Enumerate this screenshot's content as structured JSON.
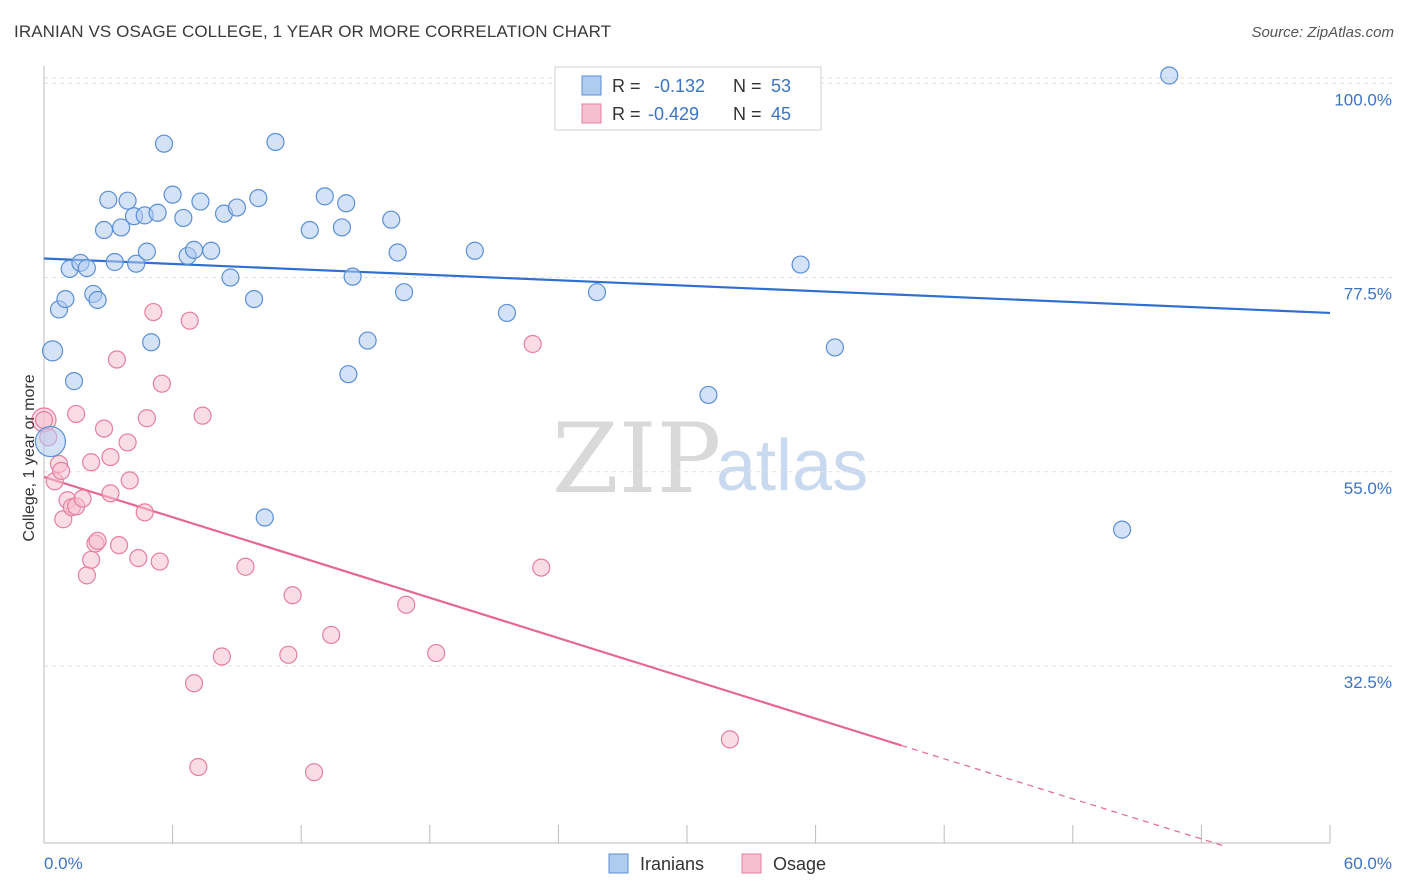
{
  "title": "IRANIAN VS OSAGE COLLEGE, 1 YEAR OR MORE CORRELATION CHART",
  "source": "Source: ZipAtlas.com",
  "colors": {
    "iranians_fill": "#aecbf0",
    "iranians_stroke": "#5b8fd6",
    "iranians_line": "#2f6fd0",
    "osage_fill": "#f6bfd0",
    "osage_stroke": "#e67fa0",
    "osage_line": "#e4688f"
  },
  "watermark": {
    "zip": "ZIP",
    "atlas": "atlas"
  },
  "legend_top": {
    "iranians": {
      "r_label": "R =",
      "r_value": "-0.132",
      "n_label": "N =",
      "n_value": "53"
    },
    "osage": {
      "r_label": "R =",
      "r_value": "-0.429",
      "n_label": "N =",
      "n_value": "45"
    }
  },
  "legend_bottom": {
    "iranians": "Iranians",
    "osage": "Osage"
  },
  "chart_data": {
    "type": "scatter",
    "title": "IRANIAN VS OSAGE COLLEGE, 1 YEAR OR MORE CORRELATION CHART",
    "xlabel": "",
    "ylabel": "College, 1 year or more",
    "xlim": [
      0,
      60
    ],
    "ylim": [
      12,
      102
    ],
    "x_tick_labels": [
      "0.0%",
      "60.0%"
    ],
    "y_ticks": [
      100,
      77.5,
      55,
      32.5
    ],
    "y_tick_labels": [
      "100.0%",
      "77.5%",
      "55.0%",
      "32.5%"
    ],
    "grid": true,
    "series": [
      {
        "name": "Iranians",
        "r": -0.132,
        "n": 53,
        "trend": {
          "x": [
            0,
            60
          ],
          "y": [
            79.7,
            73.4
          ]
        },
        "points": [
          [
            0.3,
            58.5
          ],
          [
            0.4,
            69.0
          ],
          [
            0.7,
            73.8
          ],
          [
            1.0,
            75.0
          ],
          [
            1.2,
            78.5
          ],
          [
            1.4,
            65.5
          ],
          [
            1.7,
            79.2
          ],
          [
            2.0,
            78.6
          ],
          [
            2.3,
            75.6
          ],
          [
            2.5,
            74.9
          ],
          [
            2.8,
            83.0
          ],
          [
            3.0,
            86.5
          ],
          [
            3.3,
            79.3
          ],
          [
            3.6,
            83.3
          ],
          [
            3.9,
            86.4
          ],
          [
            4.2,
            84.6
          ],
          [
            4.3,
            79.1
          ],
          [
            4.7,
            84.7
          ],
          [
            4.8,
            80.5
          ],
          [
            5.0,
            70.0
          ],
          [
            5.3,
            85.0
          ],
          [
            5.6,
            93.0
          ],
          [
            6.0,
            87.1
          ],
          [
            6.5,
            84.4
          ],
          [
            6.7,
            80.0
          ],
          [
            7.0,
            80.7
          ],
          [
            7.3,
            86.3
          ],
          [
            7.8,
            80.6
          ],
          [
            8.4,
            84.9
          ],
          [
            8.7,
            77.5
          ],
          [
            9.0,
            85.6
          ],
          [
            9.8,
            75.0
          ],
          [
            10.0,
            86.7
          ],
          [
            10.3,
            49.7
          ],
          [
            10.8,
            93.2
          ],
          [
            12.4,
            83.0
          ],
          [
            13.1,
            86.9
          ],
          [
            13.9,
            83.3
          ],
          [
            14.1,
            86.1
          ],
          [
            14.2,
            66.3
          ],
          [
            14.4,
            77.6
          ],
          [
            15.1,
            70.2
          ],
          [
            16.2,
            84.2
          ],
          [
            16.5,
            80.4
          ],
          [
            16.8,
            75.8
          ],
          [
            20.1,
            80.6
          ],
          [
            21.6,
            73.4
          ],
          [
            25.8,
            75.8
          ],
          [
            31.0,
            63.9
          ],
          [
            35.3,
            79.0
          ],
          [
            36.9,
            69.4
          ],
          [
            50.3,
            48.3
          ],
          [
            52.5,
            100.9
          ]
        ]
      },
      {
        "name": "Osage",
        "r": -0.429,
        "n": 45,
        "trend": {
          "x": [
            0,
            40
          ],
          "y": [
            54.4,
            23.3
          ]
        },
        "trend_dashed": {
          "x": [
            40,
            55
          ],
          "y": [
            23.3,
            11.7
          ]
        },
        "points": [
          [
            0.0,
            61.0
          ],
          [
            0.2,
            59.0
          ],
          [
            0.5,
            53.9
          ],
          [
            0.7,
            55.9
          ],
          [
            0.8,
            55.1
          ],
          [
            0.9,
            49.5
          ],
          [
            1.1,
            51.7
          ],
          [
            1.3,
            50.9
          ],
          [
            1.5,
            61.7
          ],
          [
            1.5,
            51.0
          ],
          [
            1.8,
            51.9
          ],
          [
            2.0,
            43.0
          ],
          [
            2.2,
            56.1
          ],
          [
            2.2,
            44.8
          ],
          [
            2.4,
            46.7
          ],
          [
            2.5,
            47.0
          ],
          [
            2.8,
            60.0
          ],
          [
            3.1,
            52.5
          ],
          [
            3.1,
            56.7
          ],
          [
            3.4,
            68.0
          ],
          [
            3.5,
            46.5
          ],
          [
            3.9,
            58.4
          ],
          [
            4.0,
            54.0
          ],
          [
            4.4,
            45.0
          ],
          [
            4.7,
            50.3
          ],
          [
            4.8,
            61.2
          ],
          [
            5.1,
            73.5
          ],
          [
            5.4,
            44.6
          ],
          [
            5.5,
            65.2
          ],
          [
            6.8,
            72.5
          ],
          [
            7.2,
            20.8
          ],
          [
            7.4,
            61.5
          ],
          [
            7.0,
            30.5
          ],
          [
            8.3,
            33.6
          ],
          [
            9.4,
            44.0
          ],
          [
            11.4,
            33.8
          ],
          [
            11.6,
            40.7
          ],
          [
            12.6,
            20.2
          ],
          [
            13.4,
            36.1
          ],
          [
            16.9,
            39.6
          ],
          [
            18.3,
            34.0
          ],
          [
            22.8,
            69.8
          ],
          [
            23.2,
            43.9
          ],
          [
            32.0,
            24.0
          ],
          [
            0.0,
            61.0
          ]
        ]
      }
    ]
  }
}
